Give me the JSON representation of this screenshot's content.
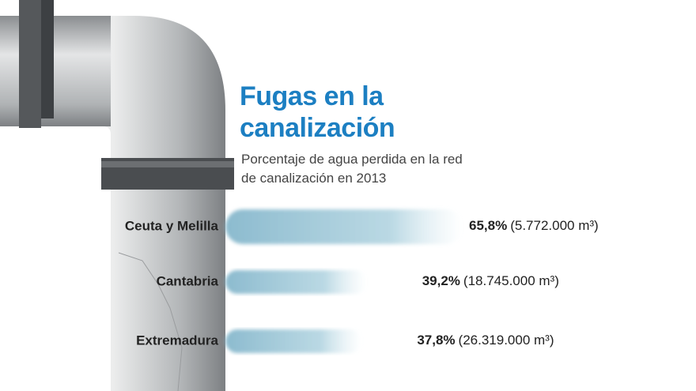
{
  "chart_data": {
    "type": "bar",
    "orientation": "horizontal",
    "title": "Fugas en la canalización",
    "subtitle": "Porcentaje de agua perdida en la red de canalización en 2013",
    "categories": [
      "Ceuta y Melilla",
      "Cantabria",
      "Extremadura"
    ],
    "values": [
      65.8,
      39.2,
      37.8
    ],
    "value_labels": [
      "65,8%",
      "39,2%",
      "37,8%"
    ],
    "volume_labels": [
      "(5.772.000 m³)",
      "(18.745.000 m³)",
      "(26.319.000 m³)"
    ],
    "color": "#8fbfd3"
  }
}
